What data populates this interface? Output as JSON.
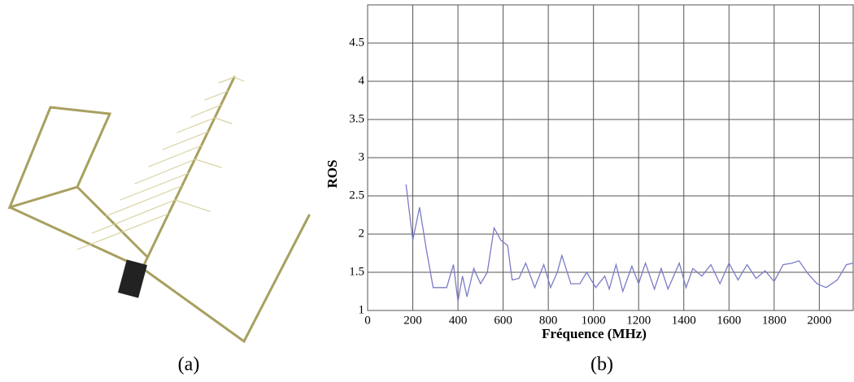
{
  "panel_labels": [
    "(a)",
    "(b)"
  ],
  "chart_data": {
    "type": "line",
    "xlabel": "Fréquence (MHz)",
    "ylabel": "ROS",
    "xlim": [
      0,
      2150
    ],
    "ylim": [
      1,
      5
    ],
    "xticks": [
      0,
      200,
      400,
      600,
      800,
      1000,
      1200,
      1400,
      1600,
      1800,
      2000
    ],
    "yticks": [
      1,
      1.5,
      2,
      2.5,
      3,
      3.5,
      4,
      4.5
    ],
    "grid": true,
    "x": [
      170,
      200,
      230,
      260,
      290,
      330,
      350,
      380,
      400,
      420,
      440,
      470,
      500,
      530,
      560,
      590,
      620,
      640,
      670,
      700,
      740,
      780,
      810,
      840,
      860,
      900,
      940,
      970,
      1010,
      1050,
      1070,
      1100,
      1130,
      1170,
      1200,
      1230,
      1270,
      1300,
      1330,
      1380,
      1410,
      1440,
      1480,
      1520,
      1560,
      1600,
      1640,
      1680,
      1720,
      1760,
      1800,
      1840,
      1880,
      1910,
      1950,
      1990,
      2030,
      2080,
      2120,
      2150
    ],
    "series": [
      {
        "color": "#7b7bc8",
        "values": [
          2.65,
          1.92,
          2.35,
          1.8,
          1.3,
          1.3,
          1.3,
          1.6,
          1.12,
          1.45,
          1.18,
          1.55,
          1.35,
          1.5,
          2.08,
          1.92,
          1.85,
          1.4,
          1.42,
          1.62,
          1.3,
          1.6,
          1.3,
          1.5,
          1.72,
          1.35,
          1.35,
          1.5,
          1.3,
          1.45,
          1.28,
          1.6,
          1.25,
          1.58,
          1.35,
          1.62,
          1.28,
          1.55,
          1.28,
          1.62,
          1.3,
          1.55,
          1.45,
          1.6,
          1.35,
          1.62,
          1.4,
          1.6,
          1.42,
          1.52,
          1.38,
          1.6,
          1.62,
          1.65,
          1.48,
          1.35,
          1.3,
          1.4,
          1.6,
          1.62
        ]
      }
    ]
  }
}
